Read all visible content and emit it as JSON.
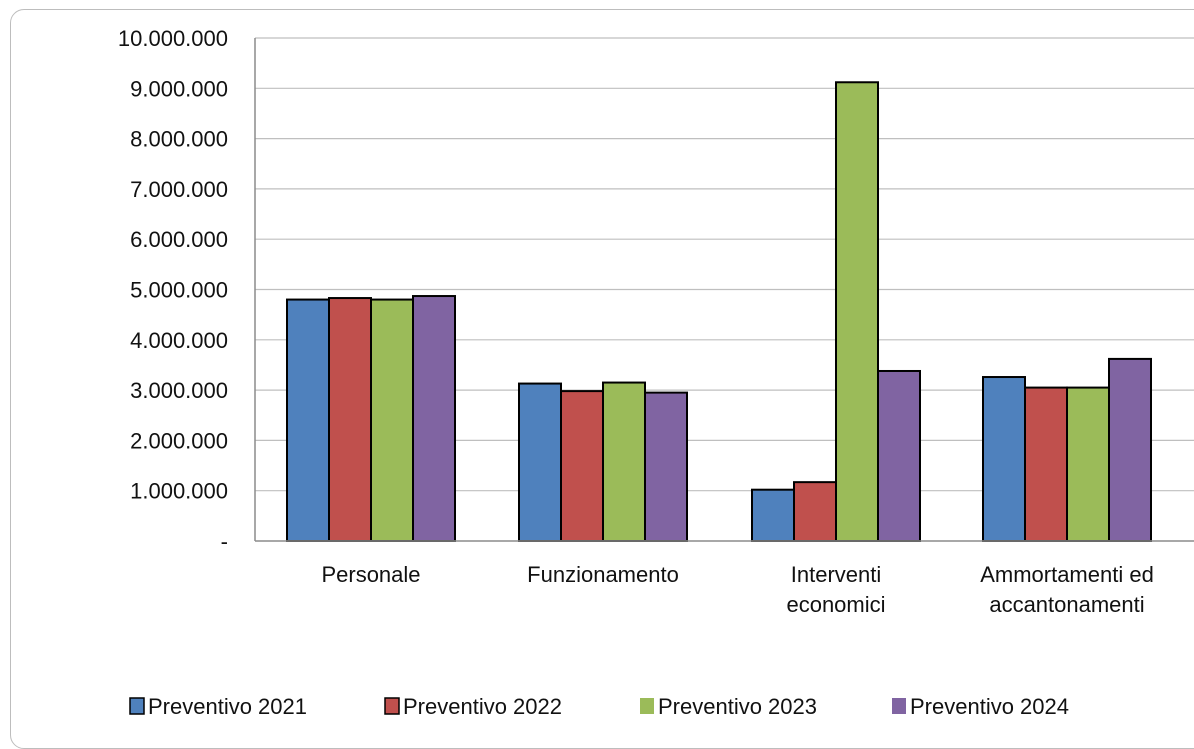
{
  "chart_data": {
    "type": "bar",
    "title": "",
    "xlabel": "",
    "ylabel": "",
    "categories": [
      [
        "Personale"
      ],
      [
        "Funzionamento"
      ],
      [
        "Interventi",
        "economici"
      ],
      [
        "Ammortamenti ed",
        "accantonamenti"
      ]
    ],
    "series": [
      {
        "name": "Preventivo 2021",
        "color": "#4f81bd",
        "values": [
          4800000,
          3130000,
          1020000,
          3260000
        ]
      },
      {
        "name": "Preventivo 2022",
        "color": "#c0504d",
        "values": [
          4830000,
          2980000,
          1170000,
          3050000
        ]
      },
      {
        "name": "Preventivo 2023",
        "color": "#9bbb59",
        "values": [
          4800000,
          3150000,
          9120000,
          3050000
        ]
      },
      {
        "name": "Preventivo 2024",
        "color": "#8064a2",
        "values": [
          4870000,
          2950000,
          3380000,
          3620000
        ]
      }
    ],
    "yticks": [
      "-",
      "1.000.000",
      "2.000.000",
      "3.000.000",
      "4.000.000",
      "5.000.000",
      "6.000.000",
      "7.000.000",
      "8.000.000",
      "9.000.000",
      "10.000.000"
    ],
    "ylim": [
      0,
      10000000
    ],
    "grid": true,
    "legend_position": "bottom"
  }
}
